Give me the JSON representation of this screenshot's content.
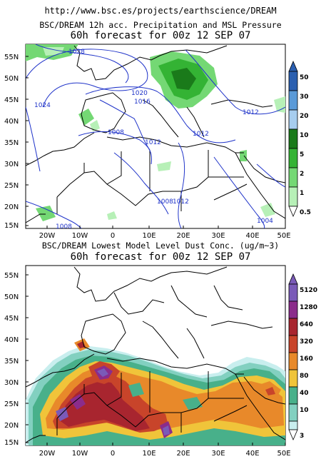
{
  "header": {
    "url": "http://www.bsc.es/projects/earthscience/DREAM"
  },
  "panel_top": {
    "title_line1": "BSC/DREAM 12h acc. Precipitation and MSL Pressure",
    "title_line2": "60h forecast for 00z 12 SEP 07",
    "lat_labels": [
      "55N",
      "50N",
      "45N",
      "40N",
      "35N",
      "30N",
      "25N",
      "20N",
      "15N"
    ],
    "lon_labels": [
      "20W",
      "10W",
      "0",
      "10E",
      "20E",
      "30E",
      "40E",
      "50E"
    ],
    "isobar_labels": [
      "1028",
      "1024",
      "1020",
      "1016",
      "1008",
      "1012",
      "1012",
      "1012",
      "1008",
      "1004",
      "1008",
      "1012"
    ],
    "colorbar": {
      "labels": [
        "50",
        "30",
        "20",
        "10",
        "5",
        "2",
        "1",
        "0.5"
      ],
      "colors": [
        "#2a5fb0",
        "#5a9ad8",
        "#a7cdef",
        "#1a7a1a",
        "#34b334",
        "#74d874",
        "#b7f0b7"
      ]
    }
  },
  "panel_bottom": {
    "title_line1": "BSC/DREAM Lowest Model Level Dust Conc. (ug/m~3)",
    "title_line2": "60h forecast for 00z 12 SEP 07",
    "lat_labels": [
      "55N",
      "50N",
      "45N",
      "40N",
      "35N",
      "30N",
      "25N",
      "20N",
      "15N"
    ],
    "lon_labels": [
      "20W",
      "10W",
      "0",
      "10E",
      "20E",
      "30E",
      "40E",
      "50E"
    ],
    "colorbar": {
      "labels": [
        "5120",
        "1280",
        "640",
        "320",
        "160",
        "80",
        "40",
        "10",
        "3"
      ],
      "colors": [
        "#7a5ab8",
        "#8b2c8b",
        "#a8252f",
        "#c8442a",
        "#e8892a",
        "#f0c43a",
        "#48b08a",
        "#82d0c0",
        "#c8eeee"
      ]
    }
  }
}
